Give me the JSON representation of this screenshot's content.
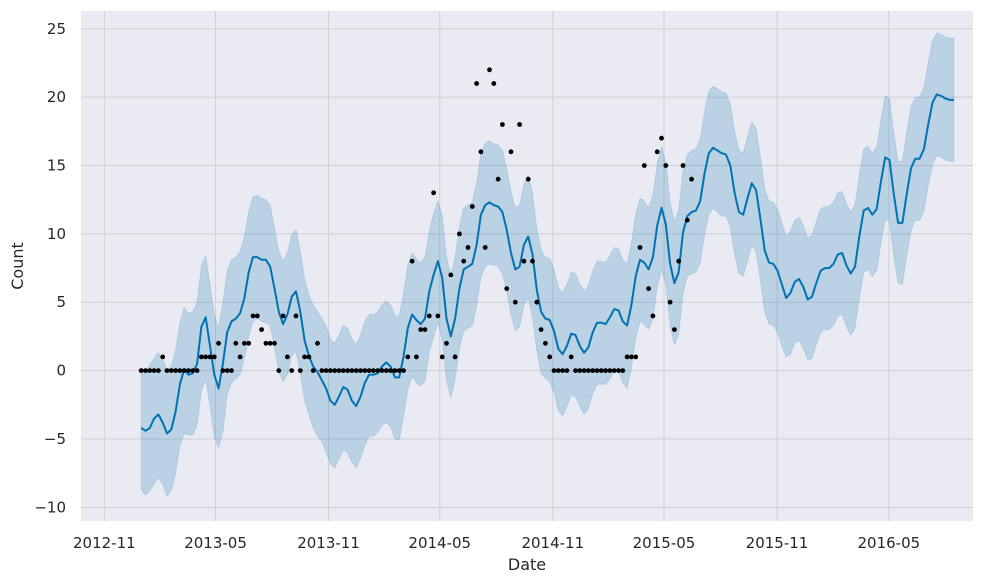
{
  "chart_data": {
    "type": "line",
    "xlabel": "Date",
    "ylabel": "Count",
    "x_axis_type": "date",
    "xlim": [
      "2012-09-24",
      "2016-09-15"
    ],
    "ylim": [
      -11,
      26.3
    ],
    "grid": true,
    "legend": "none",
    "x_ticks": [
      "2012-11",
      "2013-05",
      "2013-11",
      "2014-05",
      "2014-11",
      "2015-05",
      "2015-11",
      "2016-05"
    ],
    "y_ticks": [
      -10,
      -5,
      0,
      5,
      10,
      15,
      20,
      25
    ],
    "colors": {
      "background": "#eaeaf2",
      "grid": "#cfcfd6",
      "forecast_line": "#0072b2",
      "uncertainty_band": "#0072b2",
      "points": "#000000"
    },
    "series": [
      {
        "kind": "line",
        "x": [
          "2012-12-31",
          "2013-01-07",
          "2013-01-14",
          "2013-01-21",
          "2013-01-28",
          "2013-02-04",
          "2013-02-11",
          "2013-02-18",
          "2013-02-25",
          "2013-03-04",
          "2013-03-11",
          "2013-03-18",
          "2013-03-25",
          "2013-04-01",
          "2013-04-08",
          "2013-04-15",
          "2013-04-22",
          "2013-04-29",
          "2013-05-06",
          "2013-05-13",
          "2013-05-20",
          "2013-05-27",
          "2013-06-03",
          "2013-06-10",
          "2013-06-17",
          "2013-06-24",
          "2013-07-01",
          "2013-07-08",
          "2013-07-15",
          "2013-07-22",
          "2013-07-29",
          "2013-08-05",
          "2013-08-12",
          "2013-08-19",
          "2013-08-26",
          "2013-09-02",
          "2013-09-09",
          "2013-09-16",
          "2013-09-23",
          "2013-09-30",
          "2013-10-07",
          "2013-10-14",
          "2013-10-21",
          "2013-10-28",
          "2013-11-04",
          "2013-11-11",
          "2013-11-18",
          "2013-11-25",
          "2013-12-02",
          "2013-12-09",
          "2013-12-16",
          "2013-12-23",
          "2013-12-30",
          "2014-01-06",
          "2014-01-13",
          "2014-01-20",
          "2014-01-27",
          "2014-02-03",
          "2014-02-10",
          "2014-02-17",
          "2014-02-24",
          "2014-03-03",
          "2014-03-10",
          "2014-03-17",
          "2014-03-24",
          "2014-03-31",
          "2014-04-07",
          "2014-04-14",
          "2014-04-21",
          "2014-04-28",
          "2014-05-05",
          "2014-05-12",
          "2014-05-19",
          "2014-05-26",
          "2014-06-02",
          "2014-06-09",
          "2014-06-16",
          "2014-06-23",
          "2014-06-30",
          "2014-07-07",
          "2014-07-14",
          "2014-07-21",
          "2014-07-28",
          "2014-08-04",
          "2014-08-11",
          "2014-08-18",
          "2014-08-25",
          "2014-09-01",
          "2014-09-08",
          "2014-09-15",
          "2014-09-22",
          "2014-09-29",
          "2014-10-06",
          "2014-10-13",
          "2014-10-20",
          "2014-10-27",
          "2014-11-03",
          "2014-11-10",
          "2014-11-17",
          "2014-11-24",
          "2014-12-01",
          "2014-12-08",
          "2014-12-15",
          "2014-12-22",
          "2014-12-29",
          "2015-01-05",
          "2015-01-12",
          "2015-01-19",
          "2015-01-26",
          "2015-02-02",
          "2015-02-09",
          "2015-02-16",
          "2015-02-23",
          "2015-03-02",
          "2015-03-09",
          "2015-03-16",
          "2015-03-23",
          "2015-03-30",
          "2015-04-06",
          "2015-04-13",
          "2015-04-20",
          "2015-04-27",
          "2015-05-04",
          "2015-05-11",
          "2015-05-18",
          "2015-05-25",
          "2015-06-01",
          "2015-06-08",
          "2015-06-15",
          "2015-06-22",
          "2015-06-29",
          "2015-07-06",
          "2015-07-13",
          "2015-07-20",
          "2015-07-27",
          "2015-08-03",
          "2015-08-10",
          "2015-08-17",
          "2015-08-24",
          "2015-08-31",
          "2015-09-07",
          "2015-09-14",
          "2015-09-21",
          "2015-09-28",
          "2015-10-05",
          "2015-10-12",
          "2015-10-19",
          "2015-10-26",
          "2015-11-02",
          "2015-11-09",
          "2015-11-16",
          "2015-11-23",
          "2015-11-30",
          "2015-12-07",
          "2015-12-14",
          "2015-12-21",
          "2015-12-28",
          "2016-01-04",
          "2016-01-11",
          "2016-01-18",
          "2016-01-25",
          "2016-02-01",
          "2016-02-08",
          "2016-02-15",
          "2016-02-22",
          "2016-02-29",
          "2016-03-07",
          "2016-03-14",
          "2016-03-21",
          "2016-03-28",
          "2016-04-04",
          "2016-04-11",
          "2016-04-18",
          "2016-04-25",
          "2016-05-02",
          "2016-05-09",
          "2016-05-16",
          "2016-05-23",
          "2016-05-30",
          "2016-06-06",
          "2016-06-13",
          "2016-06-20",
          "2016-06-27",
          "2016-07-04",
          "2016-07-11",
          "2016-07-18",
          "2016-07-25",
          "2016-08-01",
          "2016-08-08",
          "2016-08-15"
        ],
        "y": [
          -4.2,
          -4.4,
          -4.2,
          -3.5,
          -3.2,
          -3.8,
          -4.6,
          -4.3,
          -3.0,
          -1.0,
          0.1,
          -0.3,
          -0.2,
          0.5,
          3.2,
          3.9,
          1.8,
          -0.3,
          -1.3,
          0.5,
          2.8,
          3.6,
          3.8,
          4.2,
          5.3,
          7.2,
          8.3,
          8.3,
          8.1,
          8.1,
          7.6,
          6.0,
          4.3,
          3.4,
          4.1,
          5.4,
          5.8,
          4.3,
          2.2,
          1.1,
          0.3,
          -0.1,
          -0.7,
          -1.3,
          -2.2,
          -2.5,
          -1.9,
          -1.2,
          -1.4,
          -2.2,
          -2.6,
          -1.9,
          -0.9,
          -0.3,
          -0.3,
          -0.2,
          0.3,
          0.6,
          0.3,
          -0.5,
          -0.5,
          1.0,
          3.1,
          4.1,
          3.7,
          3.4,
          3.8,
          5.8,
          7.0,
          8.0,
          6.8,
          3.8,
          2.5,
          3.8,
          6.0,
          7.4,
          7.6,
          7.8,
          9.2,
          11.4,
          12.1,
          12.3,
          12.1,
          12.0,
          11.6,
          10.3,
          8.6,
          7.4,
          7.6,
          9.2,
          9.8,
          8.5,
          5.9,
          4.3,
          3.8,
          3.7,
          2.9,
          1.6,
          1.2,
          1.8,
          2.7,
          2.6,
          1.8,
          1.3,
          1.7,
          2.8,
          3.5,
          3.5,
          3.4,
          3.9,
          4.5,
          4.4,
          3.6,
          3.3,
          4.8,
          6.9,
          8.1,
          7.9,
          7.4,
          8.3,
          10.6,
          11.9,
          10.7,
          7.8,
          6.4,
          7.2,
          10.1,
          11.3,
          11.6,
          11.7,
          12.4,
          14.4,
          15.9,
          16.3,
          16.1,
          15.9,
          15.8,
          15.0,
          13.0,
          11.6,
          11.4,
          12.6,
          13.7,
          13.2,
          11.1,
          8.8,
          7.9,
          7.8,
          7.3,
          6.3,
          5.3,
          5.7,
          6.5,
          6.7,
          6.1,
          5.2,
          5.4,
          6.4,
          7.3,
          7.5,
          7.5,
          7.8,
          8.5,
          8.6,
          7.7,
          7.1,
          7.6,
          9.8,
          11.7,
          11.9,
          11.4,
          11.8,
          13.8,
          15.6,
          15.4,
          12.9,
          10.8,
          10.8,
          12.9,
          14.8,
          15.5,
          15.5,
          16.2,
          18.0,
          19.6,
          20.2,
          20.1,
          19.9,
          19.8,
          19.8
        ],
        "lower": [
          -8.7,
          -9.1,
          -8.8,
          -8.3,
          -7.8,
          -8.3,
          -9.2,
          -8.8,
          -7.5,
          -5.5,
          -4.6,
          -4.7,
          -4.7,
          -4.0,
          -1.5,
          -0.6,
          -2.6,
          -4.9,
          -5.6,
          -4.5,
          -1.7,
          -0.9,
          -0.6,
          -0.3,
          0.9,
          2.5,
          3.6,
          3.8,
          3.6,
          3.5,
          3.3,
          1.7,
          -0.1,
          -0.8,
          -0.3,
          1.1,
          1.4,
          -0.2,
          -2.2,
          -3.2,
          -4.2,
          -4.8,
          -5.2,
          -6.0,
          -6.8,
          -7.1,
          -6.5,
          -5.8,
          -6.0,
          -6.7,
          -7.1,
          -6.4,
          -5.5,
          -4.8,
          -4.8,
          -4.5,
          -4.0,
          -3.8,
          -4.1,
          -5.0,
          -5.1,
          -3.4,
          -1.4,
          -0.4,
          -0.9,
          -1.1,
          -0.8,
          1.4,
          2.4,
          3.5,
          2.3,
          -0.7,
          -2.0,
          -0.6,
          1.6,
          2.9,
          3.1,
          3.3,
          4.7,
          6.8,
          7.6,
          7.8,
          7.7,
          7.6,
          7.1,
          5.8,
          4.1,
          2.9,
          3.2,
          4.8,
          5.3,
          3.9,
          1.5,
          -0.2,
          -0.6,
          -0.8,
          -1.6,
          -2.9,
          -3.3,
          -2.6,
          -1.8,
          -1.9,
          -2.6,
          -3.2,
          -2.8,
          -1.7,
          -1.0,
          -1.0,
          -1.0,
          -0.6,
          0.0,
          0.0,
          -0.9,
          -1.3,
          0.2,
          2.4,
          3.6,
          3.4,
          3.0,
          3.8,
          6.1,
          7.4,
          6.3,
          3.3,
          1.9,
          2.7,
          5.6,
          6.9,
          7.1,
          7.2,
          7.9,
          9.9,
          11.4,
          11.9,
          11.6,
          11.3,
          11.3,
          10.5,
          8.5,
          7.1,
          6.9,
          8.0,
          9.2,
          8.7,
          6.6,
          4.3,
          3.4,
          3.3,
          2.8,
          1.8,
          1.0,
          1.2,
          2.0,
          2.2,
          1.6,
          0.8,
          0.9,
          1.9,
          2.8,
          3.0,
          3.0,
          3.3,
          4.0,
          4.1,
          3.2,
          2.6,
          3.1,
          5.3,
          7.2,
          7.4,
          6.9,
          7.3,
          9.3,
          11.1,
          10.9,
          8.4,
          6.4,
          6.3,
          8.4,
          10.3,
          11.0,
          11.0,
          11.7,
          13.5,
          15.1,
          15.7,
          15.6,
          15.4,
          15.3,
          15.3
        ],
        "upper": [
          0.2,
          0.0,
          0.4,
          0.9,
          1.3,
          0.8,
          0.0,
          0.3,
          1.5,
          3.5,
          4.6,
          4.2,
          4.3,
          5.0,
          7.7,
          8.4,
          6.3,
          4.1,
          3.1,
          5.0,
          7.3,
          8.1,
          8.3,
          8.7,
          9.8,
          11.6,
          12.7,
          12.8,
          12.6,
          12.5,
          12.1,
          10.4,
          8.7,
          8.0,
          8.6,
          9.9,
          10.3,
          8.7,
          6.7,
          5.5,
          4.8,
          4.3,
          3.8,
          3.3,
          2.3,
          2.0,
          2.6,
          3.3,
          3.1,
          2.3,
          1.9,
          2.6,
          3.6,
          4.1,
          4.1,
          4.3,
          4.8,
          5.1,
          4.8,
          4.0,
          4.0,
          5.6,
          7.7,
          8.6,
          8.2,
          7.9,
          8.3,
          10.2,
          11.5,
          12.4,
          11.3,
          8.3,
          7.0,
          8.3,
          10.5,
          11.9,
          12.1,
          12.3,
          13.7,
          15.9,
          16.6,
          16.8,
          16.6,
          16.5,
          16.1,
          14.8,
          13.1,
          11.9,
          12.1,
          13.6,
          14.3,
          13.0,
          10.4,
          8.8,
          8.3,
          8.2,
          7.4,
          6.1,
          5.7,
          6.3,
          7.2,
          7.1,
          6.3,
          5.8,
          6.2,
          7.3,
          8.0,
          8.0,
          7.9,
          8.4,
          9.0,
          8.9,
          8.1,
          7.8,
          9.3,
          11.4,
          12.6,
          12.4,
          11.9,
          12.8,
          15.1,
          16.4,
          15.2,
          12.3,
          10.9,
          11.7,
          14.6,
          15.8,
          16.1,
          16.2,
          16.9,
          18.9,
          20.4,
          20.8,
          20.6,
          20.4,
          20.3,
          19.5,
          17.5,
          16.1,
          15.9,
          17.1,
          18.2,
          17.7,
          15.6,
          13.3,
          12.4,
          12.3,
          11.8,
          10.8,
          9.8,
          10.2,
          11.0,
          11.2,
          10.6,
          9.7,
          9.9,
          10.9,
          11.8,
          12.0,
          12.0,
          12.3,
          13.0,
          13.1,
          12.2,
          11.6,
          12.1,
          14.3,
          16.2,
          16.4,
          15.9,
          16.3,
          18.3,
          20.1,
          19.9,
          17.4,
          15.3,
          15.3,
          17.4,
          19.3,
          20.0,
          20.0,
          20.7,
          22.5,
          24.1,
          24.7,
          24.6,
          24.4,
          24.3,
          24.3
        ]
      },
      {
        "kind": "scatter",
        "x": [
          "2012-12-31",
          "2013-01-07",
          "2013-01-14",
          "2013-01-21",
          "2013-01-28",
          "2013-02-04",
          "2013-02-11",
          "2013-02-18",
          "2013-02-25",
          "2013-03-04",
          "2013-03-11",
          "2013-03-18",
          "2013-03-25",
          "2013-04-01",
          "2013-04-08",
          "2013-04-15",
          "2013-04-22",
          "2013-04-29",
          "2013-05-06",
          "2013-05-13",
          "2013-05-20",
          "2013-05-27",
          "2013-06-03",
          "2013-06-10",
          "2013-06-17",
          "2013-06-24",
          "2013-07-01",
          "2013-07-08",
          "2013-07-15",
          "2013-07-22",
          "2013-07-29",
          "2013-08-05",
          "2013-08-12",
          "2013-08-19",
          "2013-08-26",
          "2013-09-02",
          "2013-09-09",
          "2013-09-16",
          "2013-09-23",
          "2013-09-30",
          "2013-10-07",
          "2013-10-14",
          "2013-10-21",
          "2013-10-28",
          "2013-11-04",
          "2013-11-11",
          "2013-11-18",
          "2013-11-25",
          "2013-12-02",
          "2013-12-09",
          "2013-12-16",
          "2013-12-23",
          "2013-12-30",
          "2014-01-06",
          "2014-01-13",
          "2014-01-20",
          "2014-01-27",
          "2014-02-03",
          "2014-02-10",
          "2014-02-17",
          "2014-02-24",
          "2014-03-03",
          "2014-03-10",
          "2014-03-17",
          "2014-03-24",
          "2014-03-31",
          "2014-04-07",
          "2014-04-14",
          "2014-04-21",
          "2014-04-28",
          "2014-05-05",
          "2014-05-12",
          "2014-05-19",
          "2014-05-26",
          "2014-06-02",
          "2014-06-09",
          "2014-06-16",
          "2014-06-23",
          "2014-06-30",
          "2014-07-07",
          "2014-07-14",
          "2014-07-21",
          "2014-07-28",
          "2014-08-04",
          "2014-08-11",
          "2014-08-18",
          "2014-08-25",
          "2014-09-01",
          "2014-09-08",
          "2014-09-15",
          "2014-09-22",
          "2014-09-29",
          "2014-10-06",
          "2014-10-13",
          "2014-10-20",
          "2014-10-27",
          "2014-11-03",
          "2014-11-10",
          "2014-11-17",
          "2014-11-24",
          "2014-12-01",
          "2014-12-08",
          "2014-12-15",
          "2014-12-22",
          "2014-12-29",
          "2015-01-05",
          "2015-01-12",
          "2015-01-19",
          "2015-01-26",
          "2015-02-02",
          "2015-02-09",
          "2015-02-16",
          "2015-02-23",
          "2015-03-02",
          "2015-03-09",
          "2015-03-16",
          "2015-03-23",
          "2015-03-30",
          "2015-04-06",
          "2015-04-13",
          "2015-04-20",
          "2015-04-27",
          "2015-05-04",
          "2015-05-11",
          "2015-05-18",
          "2015-05-25",
          "2015-06-01",
          "2015-06-08",
          "2015-06-15"
        ],
        "y": [
          0,
          0,
          0,
          0,
          0,
          1,
          0,
          0,
          0,
          0,
          0,
          0,
          0,
          0,
          1,
          1,
          1,
          1,
          2,
          0,
          0,
          0,
          2,
          1,
          2,
          2,
          4,
          4,
          3,
          2,
          2,
          2,
          0,
          4,
          1,
          0,
          4,
          0,
          1,
          1,
          0,
          2,
          0,
          0,
          0,
          0,
          0,
          0,
          0,
          0,
          0,
          0,
          0,
          0,
          0,
          0,
          0,
          0,
          0,
          0,
          0,
          0,
          1,
          8,
          1,
          3,
          3,
          4,
          13,
          4,
          1,
          2,
          7,
          1,
          10,
          8,
          9,
          12,
          21,
          16,
          9,
          22,
          21,
          14,
          18,
          6,
          16,
          5,
          18,
          8,
          14,
          8,
          5,
          3,
          2,
          1,
          0,
          0,
          0,
          0,
          1,
          0,
          0,
          0,
          0,
          0,
          0,
          0,
          0,
          0,
          0,
          0,
          0,
          1,
          1,
          1,
          9,
          15,
          6,
          4,
          16,
          17,
          15,
          5,
          3,
          8,
          15,
          11,
          14
        ]
      }
    ]
  }
}
